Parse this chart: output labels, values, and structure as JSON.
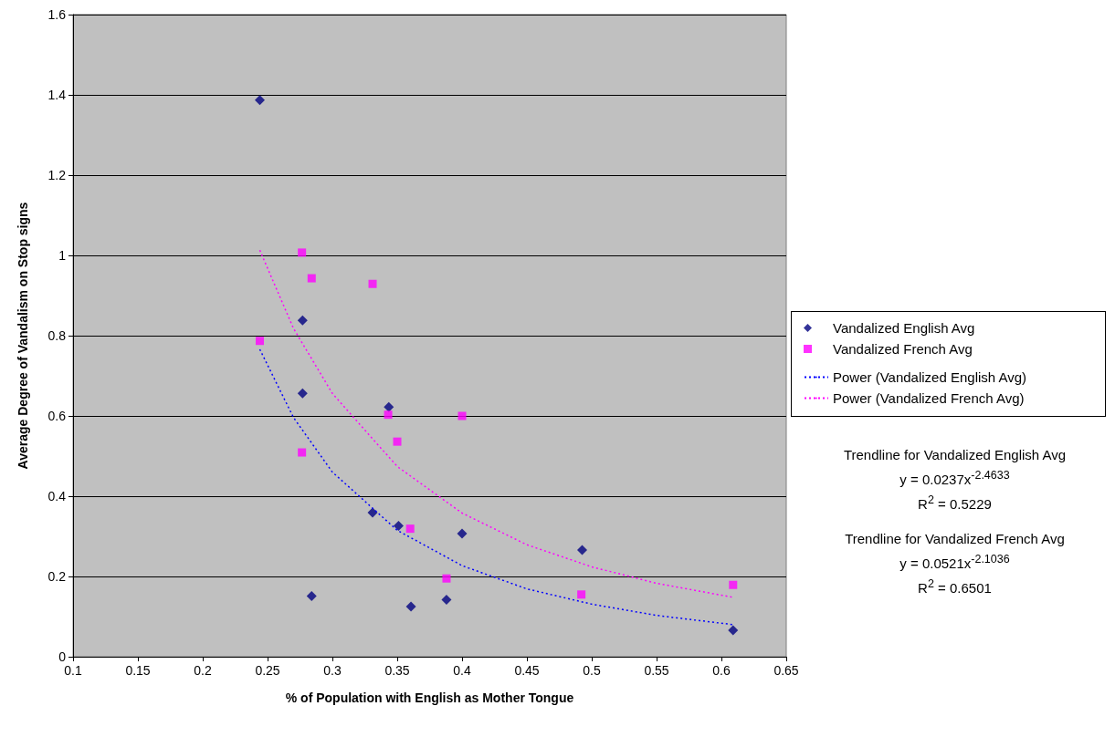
{
  "chart_data": {
    "type": "scatter",
    "xlabel": "% of Population with English as Mother Tongue",
    "ylabel": "Average Degree of Vandalism on Stop signs",
    "xlim": [
      0.1,
      0.65
    ],
    "xticks": [
      0.1,
      0.15,
      0.2,
      0.25,
      0.3,
      0.35,
      0.4,
      0.45,
      0.5,
      0.55,
      0.6,
      0.65
    ],
    "ylim": [
      0,
      1.6
    ],
    "yticks": [
      0,
      0.2,
      0.4,
      0.6,
      0.8,
      1,
      1.2,
      1.4,
      1.6
    ],
    "grid": "y",
    "legend": "right",
    "series": [
      {
        "name": "Vandalized English Avg",
        "color": "#000080",
        "marker": "diamond",
        "x": [
          0.244,
          0.277,
          0.277,
          0.3435,
          0.331,
          0.351,
          0.4,
          0.284,
          0.3606,
          0.388,
          0.4926,
          0.609
        ],
        "values": [
          1.387,
          0.838,
          0.656,
          0.622,
          0.359,
          0.326,
          0.307,
          0.151,
          0.125,
          0.142,
          0.266,
          0.066
        ]
      },
      {
        "name": "Vandalized French Avg",
        "color": "#ff00ff",
        "marker": "square",
        "x": [
          0.2765,
          0.284,
          0.331,
          0.244,
          0.343,
          0.4,
          0.35,
          0.2765,
          0.36,
          0.388,
          0.609,
          0.492
        ],
        "values": [
          1.007,
          0.943,
          0.929,
          0.787,
          0.603,
          0.6,
          0.536,
          0.509,
          0.319,
          0.195,
          0.179,
          0.155
        ]
      },
      {
        "name": "Power (Vandalized English Avg)",
        "type": "line",
        "color": "#0000ff",
        "marker": "none",
        "line_style": "dotted",
        "x": [
          0.244,
          0.27,
          0.3,
          0.35,
          0.4,
          0.45,
          0.5,
          0.55,
          0.609
        ],
        "values": [
          0.766,
          0.596,
          0.46,
          0.315,
          0.227,
          0.169,
          0.131,
          0.103,
          0.08
        ]
      },
      {
        "name": "Power (Vandalized French Avg)",
        "type": "line",
        "color": "#ff00ff",
        "marker": "none",
        "line_style": "dotted",
        "x": [
          0.244,
          0.27,
          0.3,
          0.35,
          0.4,
          0.45,
          0.5,
          0.55,
          0.609
        ],
        "values": [
          1.013,
          0.818,
          0.656,
          0.474,
          0.358,
          0.279,
          0.224,
          0.183,
          0.148
        ]
      }
    ],
    "annotations": [
      "Trendline for Vandalized English Avg\ny = 0.0237x$^{-2.4633}$\nR$^{2}$ = 0.5229",
      "Trendline for Vandalized French Avg\ny = 0.0521x$^{-2.1036}$\nR$^{2}$ = 0.6501"
    ]
  }
}
